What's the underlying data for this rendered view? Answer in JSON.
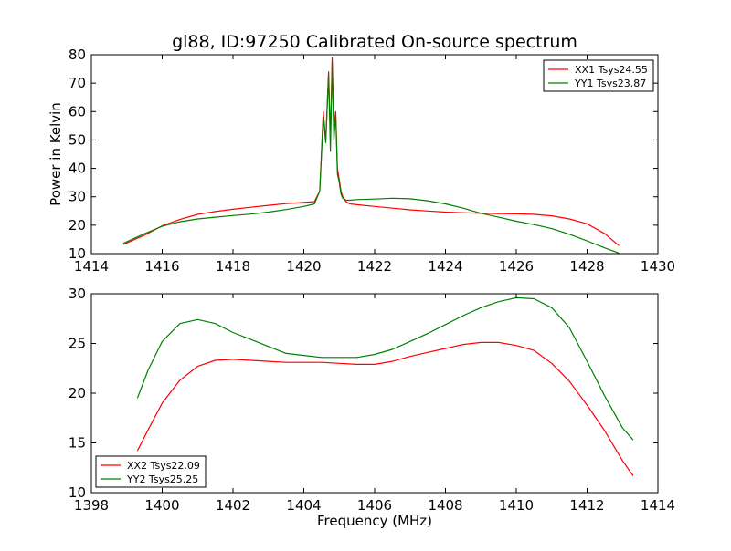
{
  "chart_data": [
    {
      "type": "line",
      "title": "gl88, ID:97250 Calibrated On-source spectrum",
      "xlabel": "",
      "ylabel": "Power in Kelvin",
      "xlim": [
        1414,
        1430
      ],
      "ylim": [
        10,
        80
      ],
      "xticks": [
        1414,
        1416,
        1418,
        1420,
        1422,
        1424,
        1426,
        1428,
        1430
      ],
      "yticks": [
        10,
        20,
        30,
        40,
        50,
        60,
        70,
        80
      ],
      "grid": false,
      "legend_position": "top-right",
      "series": [
        {
          "name": "XX1 Tsys24.55",
          "color": "#ff0000",
          "x": [
            1414.9,
            1415.5,
            1416.0,
            1416.5,
            1417.0,
            1417.5,
            1418.0,
            1418.5,
            1419.0,
            1419.5,
            1420.0,
            1420.3,
            1420.45,
            1420.55,
            1420.62,
            1420.7,
            1420.75,
            1420.8,
            1420.85,
            1420.9,
            1420.95,
            1421.0,
            1421.05,
            1421.1,
            1421.2,
            1421.3,
            1421.5,
            1422.0,
            1422.5,
            1423.0,
            1423.5,
            1424.0,
            1424.5,
            1425.0,
            1425.5,
            1426.0,
            1426.5,
            1427.0,
            1427.5,
            1428.0,
            1428.5,
            1428.9
          ],
          "values": [
            13.2,
            16.5,
            19.8,
            22.0,
            23.8,
            24.8,
            25.6,
            26.3,
            27.0,
            27.6,
            28.0,
            28.3,
            32,
            60,
            50,
            74,
            50,
            79,
            55,
            60,
            40,
            36,
            32,
            30,
            28.2,
            27.5,
            27.2,
            26.6,
            26.0,
            25.4,
            25.0,
            24.6,
            24.4,
            24.2,
            24.1,
            24.0,
            23.8,
            23.3,
            22.2,
            20.5,
            17.0,
            12.8
          ]
        },
        {
          "name": "YY1 Tsys23.87",
          "color": "#008000",
          "x": [
            1414.9,
            1415.5,
            1416.0,
            1416.5,
            1417.0,
            1417.5,
            1418.0,
            1418.5,
            1419.0,
            1419.5,
            1420.0,
            1420.3,
            1420.45,
            1420.55,
            1420.62,
            1420.7,
            1420.75,
            1420.8,
            1420.85,
            1420.9,
            1420.95,
            1421.0,
            1421.05,
            1421.1,
            1421.2,
            1421.3,
            1421.5,
            1422.0,
            1422.5,
            1423.0,
            1423.5,
            1424.0,
            1424.5,
            1425.0,
            1425.5,
            1426.0,
            1426.5,
            1427.0,
            1427.5,
            1428.0,
            1428.5,
            1428.9
          ],
          "values": [
            13.6,
            17.0,
            19.6,
            21.2,
            22.2,
            22.8,
            23.4,
            23.9,
            24.6,
            25.5,
            26.6,
            27.5,
            32,
            58,
            49,
            73,
            46,
            77,
            50,
            59,
            38,
            35,
            31,
            29.5,
            28.8,
            28.8,
            29.0,
            29.2,
            29.5,
            29.3,
            28.6,
            27.5,
            26.0,
            24.2,
            22.8,
            21.4,
            20.2,
            18.8,
            16.8,
            14.5,
            12.0,
            10.2
          ]
        }
      ]
    },
    {
      "type": "line",
      "title": "",
      "xlabel": "Frequency (MHz)",
      "ylabel": "",
      "xlim": [
        1398,
        1414
      ],
      "ylim": [
        10,
        30
      ],
      "xticks": [
        1398,
        1400,
        1402,
        1404,
        1406,
        1408,
        1410,
        1412,
        1414
      ],
      "yticks": [
        10,
        15,
        20,
        25,
        30
      ],
      "grid": false,
      "legend_position": "bottom-left",
      "series": [
        {
          "name": "XX2 Tsys22.09",
          "color": "#ff0000",
          "x": [
            1399.3,
            1399.6,
            1400.0,
            1400.5,
            1401.0,
            1401.5,
            1402.0,
            1402.5,
            1403.0,
            1403.5,
            1404.0,
            1404.5,
            1405.0,
            1405.5,
            1406.0,
            1406.5,
            1407.0,
            1407.5,
            1408.0,
            1408.5,
            1409.0,
            1409.5,
            1410.0,
            1410.5,
            1411.0,
            1411.5,
            1412.0,
            1412.5,
            1413.0,
            1413.3
          ],
          "values": [
            14.2,
            16.3,
            19.0,
            21.3,
            22.7,
            23.3,
            23.4,
            23.3,
            23.2,
            23.1,
            23.1,
            23.1,
            23.0,
            22.9,
            22.9,
            23.2,
            23.7,
            24.1,
            24.5,
            24.9,
            25.1,
            25.1,
            24.8,
            24.3,
            23.0,
            21.2,
            18.8,
            16.2,
            13.2,
            11.7
          ]
        },
        {
          "name": "YY2 Tsys25.25",
          "color": "#008000",
          "x": [
            1399.3,
            1399.6,
            1400.0,
            1400.5,
            1401.0,
            1401.5,
            1402.0,
            1402.5,
            1403.0,
            1403.5,
            1404.0,
            1404.5,
            1405.0,
            1405.5,
            1406.0,
            1406.5,
            1407.0,
            1407.5,
            1408.0,
            1408.5,
            1409.0,
            1409.5,
            1410.0,
            1410.5,
            1411.0,
            1411.5,
            1412.0,
            1412.5,
            1413.0,
            1413.3
          ],
          "values": [
            19.5,
            22.3,
            25.2,
            27.0,
            27.4,
            27.0,
            26.1,
            25.4,
            24.7,
            24.0,
            23.8,
            23.6,
            23.6,
            23.6,
            23.9,
            24.4,
            25.2,
            26.0,
            26.9,
            27.8,
            28.6,
            29.2,
            29.6,
            29.5,
            28.6,
            26.6,
            23.2,
            19.7,
            16.5,
            15.3
          ]
        }
      ]
    }
  ]
}
